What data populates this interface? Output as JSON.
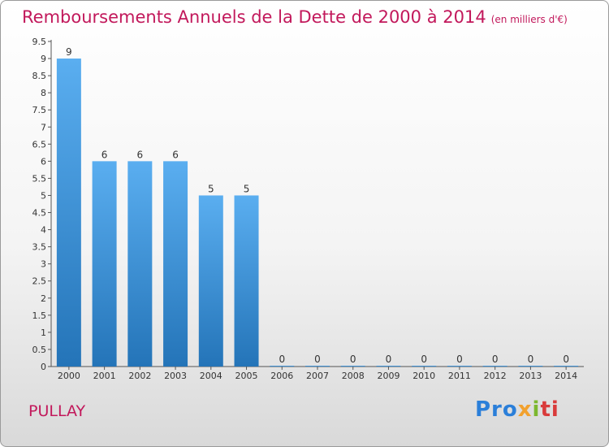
{
  "chart_data": {
    "type": "bar",
    "title": "Remboursements Annuels de la Dette de 2000 à 2014",
    "subtitle": "(en milliers d'€)",
    "categories": [
      "2000",
      "2001",
      "2002",
      "2003",
      "2004",
      "2005",
      "2006",
      "2007",
      "2008",
      "2009",
      "2010",
      "2011",
      "2012",
      "2013",
      "2014"
    ],
    "values": [
      9,
      6,
      6,
      6,
      5,
      5,
      0,
      0,
      0,
      0,
      0,
      0,
      0,
      0,
      0
    ],
    "data_labels": [
      "9",
      "6",
      "6",
      "6",
      "5",
      "5",
      "0",
      "0",
      "0",
      "0",
      "0",
      "0",
      "0",
      "0",
      "0"
    ],
    "yticks": [
      "0",
      "0.5",
      "1",
      "1.5",
      "2",
      "2.5",
      "3",
      "3.5",
      "4",
      "4.5",
      "5",
      "5.5",
      "6",
      "6.5",
      "7",
      "7.5",
      "8",
      "8.5",
      "9",
      "9.5"
    ],
    "ylim": [
      0,
      9.5
    ],
    "grid": false,
    "bar_color": "#3a8fd6"
  },
  "footer": {
    "place": "PULLAY",
    "logo": [
      "Pro",
      "x",
      "i",
      "ti"
    ]
  },
  "colors": {
    "title": "#c2185b",
    "accent": "#3a8fd6"
  }
}
